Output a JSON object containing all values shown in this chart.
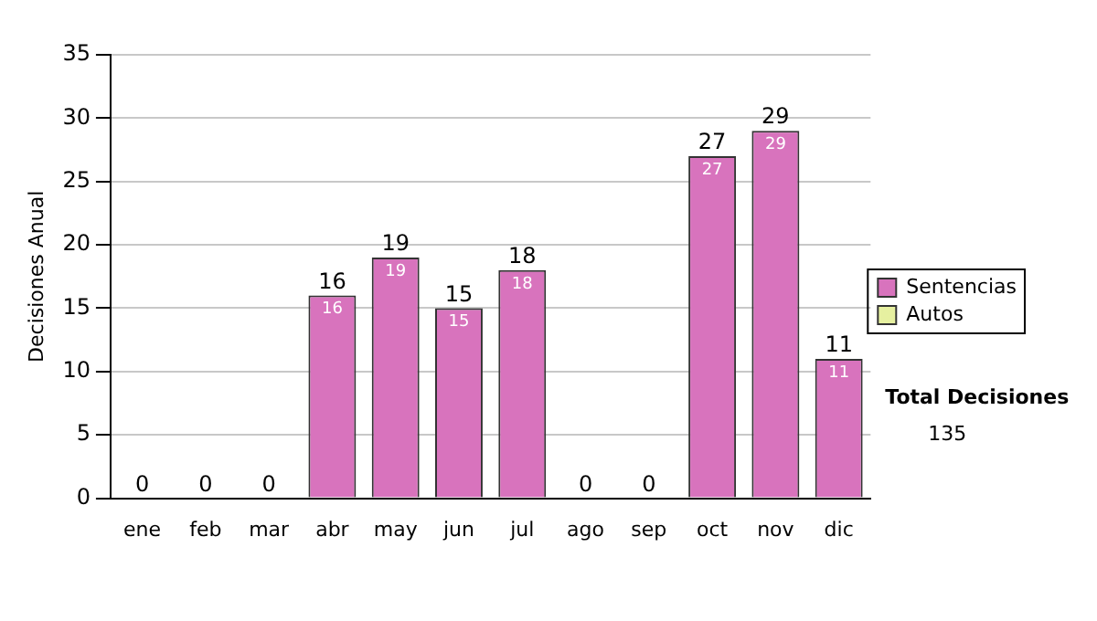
{
  "chart_data": {
    "type": "bar",
    "stacked": true,
    "categories": [
      "ene",
      "feb",
      "mar",
      "abr",
      "may",
      "jun",
      "jul",
      "ago",
      "sep",
      "oct",
      "nov",
      "dic"
    ],
    "series": [
      {
        "name": "Sentencias",
        "color": "#d873bd",
        "values": [
          0,
          0,
          0,
          16,
          19,
          15,
          18,
          0,
          0,
          27,
          29,
          11
        ],
        "value_labels": [
          null,
          null,
          null,
          "16",
          "19",
          "15",
          "18",
          null,
          null,
          "27",
          "29",
          "11"
        ]
      },
      {
        "name": "Autos",
        "color": "#e6f0a0",
        "values": [
          0,
          0,
          0,
          0,
          0,
          0,
          0,
          0,
          0,
          0,
          0,
          0
        ]
      }
    ],
    "totals": [
      "0",
      "0",
      "0",
      "16",
      "19",
      "15",
      "18",
      "0",
      "0",
      "27",
      "29",
      "11"
    ],
    "ylabel": "Decisiones Anual",
    "ylim": [
      0,
      35
    ],
    "yticks": [
      0,
      5,
      10,
      15,
      20,
      25,
      30,
      35
    ],
    "grid": "y",
    "legend": "right",
    "annotations": [
      "Total Decisiones",
      "135"
    ]
  }
}
